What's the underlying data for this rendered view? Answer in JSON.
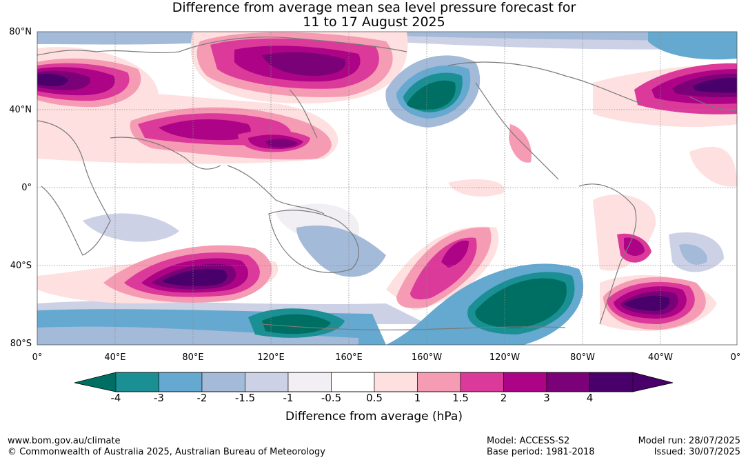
{
  "title_line1": "Difference from average mean sea level pressure forecast for",
  "title_line2": "11 to 17 August 2025",
  "lat_labels": [
    "80°N",
    "40°N",
    "0°",
    "40°S",
    "80°S"
  ],
  "lon_labels": [
    "0°",
    "40°E",
    "80°E",
    "120°E",
    "160°E",
    "160°W",
    "120°W",
    "80°W",
    "40°W",
    "0°"
  ],
  "colorbar": {
    "ticks": [
      "-4",
      "-3",
      "-2",
      "-1.5",
      "-1",
      "-0.5",
      "0.5",
      "1",
      "1.5",
      "2",
      "3",
      "4"
    ],
    "colors": [
      "#1a8f94",
      "#65a9d0",
      "#a3bad8",
      "#cdd1e6",
      "#f1eef4",
      "#ffffff",
      "#fde0df",
      "#f59bb3",
      "#db3a9a",
      "#ad0386",
      "#7a0177",
      "#49006a"
    ],
    "low_color": "#006f63",
    "label": "Difference from average (hPa)"
  },
  "footer": {
    "website": "www.bom.gov.au/climate",
    "copyright": "© Commonwealth of Australia 2025, Australian Bureau of Meteorology",
    "model": "Model: ACCESS-S2",
    "base_period": "Base period: 1981-2018",
    "model_run": "Model run: 28/07/2025",
    "issued": "Issued: 30/07/2025"
  }
}
